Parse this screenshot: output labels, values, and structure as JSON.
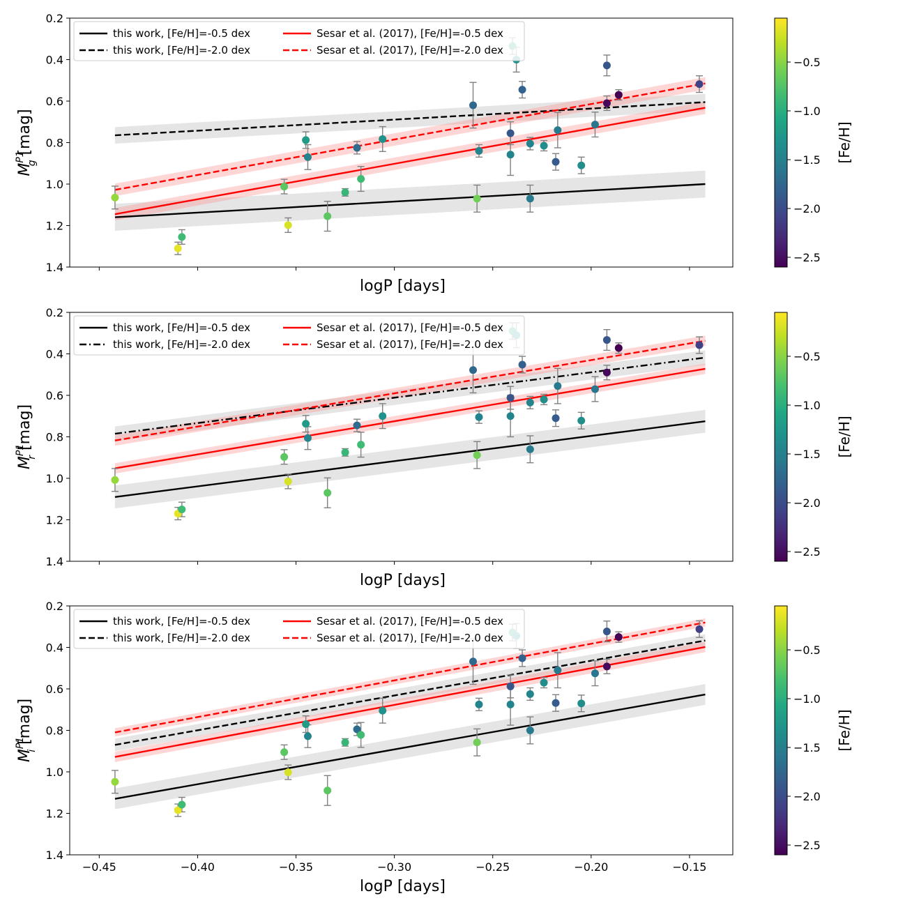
{
  "chart_data": [
    {
      "type": "scatter",
      "band": "g",
      "xlabel": "logP [days]",
      "ylabel_main": "M",
      "ylabel_sup": "P1",
      "ylabel_sub": "g",
      "ylabel_unit": " [mag]",
      "xlim": [
        -0.465,
        -0.128
      ],
      "ylim": [
        1.4,
        0.2
      ],
      "xticks": [
        -0.45,
        -0.4,
        -0.35,
        -0.3,
        -0.25,
        -0.2,
        -0.15
      ],
      "xtick_labels": [
        "−0.45",
        "−0.40",
        "−0.35",
        "−0.30",
        "−0.25",
        "−0.20",
        "−0.15"
      ],
      "show_xtick_labels": false,
      "yticks": [
        0.2,
        0.4,
        0.6,
        0.8,
        1.0,
        1.2,
        1.4
      ],
      "ytick_labels": [
        "0.2",
        "0.4",
        "0.6",
        "0.8",
        "1.0",
        "1.2",
        "1.4"
      ],
      "legend": {
        "location": "upper-left",
        "columns": 2
      },
      "lines": [
        {
          "label": "this work, [Fe/H]=-0.5 dex",
          "color": "#000000",
          "style": "solid",
          "x": [
            -0.442,
            -0.142
          ],
          "y": [
            1.16,
            1.0
          ],
          "band": 0.065
        },
        {
          "label": "this work, [Fe/H]=-2.0 dex",
          "color": "#000000",
          "style": "dashed",
          "x": [
            -0.442,
            -0.142
          ],
          "y": [
            0.765,
            0.605
          ],
          "band": 0.04
        },
        {
          "label": "Sesar et al. (2017), [Fe/H]=-0.5 dex",
          "color": "#ff0000",
          "style": "solid",
          "x": [
            -0.442,
            -0.142
          ],
          "y": [
            1.145,
            0.632
          ],
          "band": 0.03
        },
        {
          "label": "Sesar et al. (2017), [Fe/H]=-2.0 dex",
          "color": "#ff0000",
          "style": "dashed",
          "x": [
            -0.442,
            -0.142
          ],
          "y": [
            1.028,
            0.515
          ],
          "band": 0.03
        }
      ],
      "points": [
        {
          "x": -0.442,
          "y": 1.065,
          "err": 0.055,
          "feh": -0.45
        },
        {
          "x": -0.41,
          "y": 1.31,
          "err": 0.03,
          "feh": -0.15
        },
        {
          "x": -0.408,
          "y": 1.255,
          "err": 0.035,
          "feh": -0.85
        },
        {
          "x": -0.356,
          "y": 1.012,
          "err": 0.035,
          "feh": -0.7
        },
        {
          "x": -0.354,
          "y": 1.198,
          "err": 0.035,
          "feh": -0.2
        },
        {
          "x": -0.345,
          "y": 0.788,
          "err": 0.04,
          "feh": -1.2
        },
        {
          "x": -0.344,
          "y": 0.87,
          "err": 0.06,
          "feh": -1.45
        },
        {
          "x": -0.334,
          "y": 1.155,
          "err": 0.072,
          "feh": -0.7
        },
        {
          "x": -0.325,
          "y": 1.04,
          "err": 0.018,
          "feh": -0.9
        },
        {
          "x": -0.319,
          "y": 0.825,
          "err": 0.03,
          "feh": -1.7
        },
        {
          "x": -0.317,
          "y": 0.975,
          "err": 0.06,
          "feh": -0.85
        },
        {
          "x": -0.306,
          "y": 0.783,
          "err": 0.06,
          "feh": -1.3
        },
        {
          "x": -0.26,
          "y": 0.62,
          "err": 0.11,
          "feh": -1.75
        },
        {
          "x": -0.258,
          "y": 1.07,
          "err": 0.065,
          "feh": -0.6
        },
        {
          "x": -0.257,
          "y": 0.84,
          "err": 0.03,
          "feh": -1.45
        },
        {
          "x": -0.241,
          "y": 0.755,
          "err": 0.055,
          "feh": -1.9
        },
        {
          "x": -0.241,
          "y": 0.858,
          "err": 0.1,
          "feh": -1.45
        },
        {
          "x": -0.24,
          "y": 0.335,
          "err": 0.04,
          "feh": -1.05
        },
        {
          "x": -0.238,
          "y": 0.4,
          "err": 0.06,
          "feh": -1.3
        },
        {
          "x": -0.235,
          "y": 0.545,
          "err": 0.04,
          "feh": -1.8
        },
        {
          "x": -0.231,
          "y": 0.805,
          "err": 0.03,
          "feh": -1.45
        },
        {
          "x": -0.231,
          "y": 1.07,
          "err": 0.065,
          "feh": -1.55
        },
        {
          "x": -0.224,
          "y": 0.815,
          "err": 0.025,
          "feh": -1.35
        },
        {
          "x": -0.218,
          "y": 0.893,
          "err": 0.04,
          "feh": -1.85
        },
        {
          "x": -0.217,
          "y": 0.74,
          "err": 0.085,
          "feh": -1.55
        },
        {
          "x": -0.205,
          "y": 0.91,
          "err": 0.04,
          "feh": -1.35
        },
        {
          "x": -0.198,
          "y": 0.713,
          "err": 0.06,
          "feh": -1.6
        },
        {
          "x": -0.192,
          "y": 0.428,
          "err": 0.05,
          "feh": -1.9
        },
        {
          "x": -0.192,
          "y": 0.61,
          "err": 0.035,
          "feh": -2.55
        },
        {
          "x": -0.186,
          "y": 0.57,
          "err": 0.025,
          "feh": -2.65
        },
        {
          "x": -0.145,
          "y": 0.518,
          "err": 0.04,
          "feh": -2.1
        }
      ]
    },
    {
      "type": "scatter",
      "band": "r",
      "xlabel": "logP [days]",
      "ylabel_main": "M",
      "ylabel_sup": "P1",
      "ylabel_sub": "r",
      "ylabel_unit": " [mag]",
      "xlim": [
        -0.465,
        -0.128
      ],
      "ylim": [
        1.4,
        0.2
      ],
      "xticks": [
        -0.45,
        -0.4,
        -0.35,
        -0.3,
        -0.25,
        -0.2,
        -0.15
      ],
      "xtick_labels": [
        "−0.45",
        "−0.40",
        "−0.35",
        "−0.30",
        "−0.25",
        "−0.20",
        "−0.15"
      ],
      "show_xtick_labels": false,
      "yticks": [
        0.2,
        0.4,
        0.6,
        0.8,
        1.0,
        1.2,
        1.4
      ],
      "ytick_labels": [
        "0.2",
        "0.4",
        "0.6",
        "0.8",
        "1.0",
        "1.2",
        "1.4"
      ],
      "legend": {
        "location": "upper-left",
        "columns": 2
      },
      "lines": [
        {
          "label": "this work, [Fe/H]=-0.5 dex",
          "color": "#000000",
          "style": "solid",
          "x": [
            -0.442,
            -0.142
          ],
          "y": [
            1.09,
            0.725
          ],
          "band": 0.055
        },
        {
          "label": "this work, [Fe/H]=-2.0 dex",
          "color": "#000000",
          "style": "dashdot",
          "x": [
            -0.442,
            -0.142
          ],
          "y": [
            0.785,
            0.418
          ],
          "band": 0.035
        },
        {
          "label": "Sesar et al. (2017), [Fe/H]=-0.5 dex",
          "color": "#ff0000",
          "style": "solid",
          "x": [
            -0.442,
            -0.142
          ],
          "y": [
            0.952,
            0.472
          ],
          "band": 0.025
        },
        {
          "label": "Sesar et al. (2017), [Fe/H]=-2.0 dex",
          "color": "#ff0000",
          "style": "dashed",
          "x": [
            -0.442,
            -0.142
          ],
          "y": [
            0.818,
            0.337
          ],
          "band": 0.025
        }
      ],
      "points": [
        {
          "x": -0.442,
          "y": 1.008,
          "err": 0.055,
          "feh": -0.45
        },
        {
          "x": -0.41,
          "y": 1.17,
          "err": 0.03,
          "feh": -0.15
        },
        {
          "x": -0.408,
          "y": 1.15,
          "err": 0.035,
          "feh": -0.85
        },
        {
          "x": -0.356,
          "y": 0.897,
          "err": 0.035,
          "feh": -0.7
        },
        {
          "x": -0.354,
          "y": 1.015,
          "err": 0.035,
          "feh": -0.2
        },
        {
          "x": -0.345,
          "y": 0.737,
          "err": 0.04,
          "feh": -1.2
        },
        {
          "x": -0.344,
          "y": 0.806,
          "err": 0.055,
          "feh": -1.45
        },
        {
          "x": -0.334,
          "y": 1.07,
          "err": 0.072,
          "feh": -0.7
        },
        {
          "x": -0.325,
          "y": 0.875,
          "err": 0.018,
          "feh": -0.9
        },
        {
          "x": -0.319,
          "y": 0.745,
          "err": 0.03,
          "feh": -1.7
        },
        {
          "x": -0.317,
          "y": 0.838,
          "err": 0.06,
          "feh": -0.85
        },
        {
          "x": -0.306,
          "y": 0.7,
          "err": 0.06,
          "feh": -1.3
        },
        {
          "x": -0.26,
          "y": 0.478,
          "err": 0.11,
          "feh": -1.75
        },
        {
          "x": -0.258,
          "y": 0.888,
          "err": 0.065,
          "feh": -0.6
        },
        {
          "x": -0.257,
          "y": 0.705,
          "err": 0.03,
          "feh": -1.45
        },
        {
          "x": -0.241,
          "y": 0.612,
          "err": 0.055,
          "feh": -1.9
        },
        {
          "x": -0.241,
          "y": 0.7,
          "err": 0.1,
          "feh": -1.45
        },
        {
          "x": -0.24,
          "y": 0.29,
          "err": 0.04,
          "feh": -1.05
        },
        {
          "x": -0.238,
          "y": 0.31,
          "err": 0.06,
          "feh": -1.3
        },
        {
          "x": -0.235,
          "y": 0.452,
          "err": 0.04,
          "feh": -1.8
        },
        {
          "x": -0.231,
          "y": 0.635,
          "err": 0.03,
          "feh": -1.45
        },
        {
          "x": -0.231,
          "y": 0.86,
          "err": 0.065,
          "feh": -1.55
        },
        {
          "x": -0.224,
          "y": 0.62,
          "err": 0.025,
          "feh": -1.35
        },
        {
          "x": -0.218,
          "y": 0.71,
          "err": 0.04,
          "feh": -1.85
        },
        {
          "x": -0.217,
          "y": 0.555,
          "err": 0.085,
          "feh": -1.55
        },
        {
          "x": -0.205,
          "y": 0.722,
          "err": 0.04,
          "feh": -1.35
        },
        {
          "x": -0.198,
          "y": 0.57,
          "err": 0.06,
          "feh": -1.6
        },
        {
          "x": -0.192,
          "y": 0.333,
          "err": 0.05,
          "feh": -1.9
        },
        {
          "x": -0.192,
          "y": 0.49,
          "err": 0.035,
          "feh": -2.55
        },
        {
          "x": -0.186,
          "y": 0.372,
          "err": 0.025,
          "feh": -2.65
        },
        {
          "x": -0.145,
          "y": 0.358,
          "err": 0.04,
          "feh": -2.1
        }
      ]
    },
    {
      "type": "scatter",
      "band": "i",
      "xlabel": "logP [days]",
      "ylabel_main": "M",
      "ylabel_sup": "P1",
      "ylabel_sub": "i",
      "ylabel_unit": " [mag]",
      "xlim": [
        -0.465,
        -0.128
      ],
      "ylim": [
        1.4,
        0.2
      ],
      "xticks": [
        -0.45,
        -0.4,
        -0.35,
        -0.3,
        -0.25,
        -0.2,
        -0.15
      ],
      "xtick_labels": [
        "−0.45",
        "−0.40",
        "−0.35",
        "−0.30",
        "−0.25",
        "−0.20",
        "−0.15"
      ],
      "show_xtick_labels": true,
      "yticks": [
        0.2,
        0.4,
        0.6,
        0.8,
        1.0,
        1.2,
        1.4
      ],
      "ytick_labels": [
        "0.2",
        "0.4",
        "0.6",
        "0.8",
        "1.0",
        "1.2",
        "1.4"
      ],
      "legend": {
        "location": "upper-left",
        "columns": 2
      },
      "lines": [
        {
          "label": "this work, [Fe/H]=-0.5 dex",
          "color": "#000000",
          "style": "solid",
          "x": [
            -0.442,
            -0.142
          ],
          "y": [
            1.13,
            0.627
          ],
          "band": 0.05
        },
        {
          "label": "this work, [Fe/H]=-2.0 dex",
          "color": "#000000",
          "style": "dashed",
          "x": [
            -0.442,
            -0.142
          ],
          "y": [
            0.87,
            0.367
          ],
          "band": 0.03
        },
        {
          "label": "Sesar et al. (2017), [Fe/H]=-0.5 dex",
          "color": "#ff0000",
          "style": "solid",
          "x": [
            -0.442,
            -0.142
          ],
          "y": [
            0.928,
            0.398
          ],
          "band": 0.025
        },
        {
          "label": "Sesar et al. (2017), [Fe/H]=-2.0 dex",
          "color": "#ff0000",
          "style": "dashed",
          "x": [
            -0.442,
            -0.142
          ],
          "y": [
            0.81,
            0.28
          ],
          "band": 0.02
        }
      ],
      "points": [
        {
          "x": -0.442,
          "y": 1.048,
          "err": 0.055,
          "feh": -0.45
        },
        {
          "x": -0.41,
          "y": 1.185,
          "err": 0.03,
          "feh": -0.15
        },
        {
          "x": -0.408,
          "y": 1.158,
          "err": 0.035,
          "feh": -0.85
        },
        {
          "x": -0.356,
          "y": 0.905,
          "err": 0.035,
          "feh": -0.7
        },
        {
          "x": -0.354,
          "y": 1.002,
          "err": 0.035,
          "feh": -0.2
        },
        {
          "x": -0.345,
          "y": 0.77,
          "err": 0.04,
          "feh": -1.2
        },
        {
          "x": -0.344,
          "y": 0.828,
          "err": 0.055,
          "feh": -1.45
        },
        {
          "x": -0.334,
          "y": 1.09,
          "err": 0.072,
          "feh": -0.7
        },
        {
          "x": -0.325,
          "y": 0.858,
          "err": 0.018,
          "feh": -0.9
        },
        {
          "x": -0.319,
          "y": 0.795,
          "err": 0.03,
          "feh": -1.7
        },
        {
          "x": -0.317,
          "y": 0.822,
          "err": 0.06,
          "feh": -0.85
        },
        {
          "x": -0.306,
          "y": 0.705,
          "err": 0.06,
          "feh": -1.3
        },
        {
          "x": -0.26,
          "y": 0.468,
          "err": 0.11,
          "feh": -1.75
        },
        {
          "x": -0.258,
          "y": 0.858,
          "err": 0.065,
          "feh": -0.6
        },
        {
          "x": -0.257,
          "y": 0.675,
          "err": 0.03,
          "feh": -1.45
        },
        {
          "x": -0.241,
          "y": 0.588,
          "err": 0.055,
          "feh": -1.9
        },
        {
          "x": -0.241,
          "y": 0.675,
          "err": 0.1,
          "feh": -1.45
        },
        {
          "x": -0.24,
          "y": 0.328,
          "err": 0.04,
          "feh": -1.05
        },
        {
          "x": -0.238,
          "y": 0.345,
          "err": 0.06,
          "feh": -1.3
        },
        {
          "x": -0.235,
          "y": 0.452,
          "err": 0.04,
          "feh": -1.8
        },
        {
          "x": -0.231,
          "y": 0.625,
          "err": 0.03,
          "feh": -1.45
        },
        {
          "x": -0.231,
          "y": 0.8,
          "err": 0.065,
          "feh": -1.55
        },
        {
          "x": -0.224,
          "y": 0.57,
          "err": 0.025,
          "feh": -1.35
        },
        {
          "x": -0.218,
          "y": 0.668,
          "err": 0.04,
          "feh": -1.85
        },
        {
          "x": -0.217,
          "y": 0.51,
          "err": 0.085,
          "feh": -1.55
        },
        {
          "x": -0.205,
          "y": 0.67,
          "err": 0.04,
          "feh": -1.35
        },
        {
          "x": -0.198,
          "y": 0.525,
          "err": 0.06,
          "feh": -1.6
        },
        {
          "x": -0.192,
          "y": 0.323,
          "err": 0.05,
          "feh": -1.9
        },
        {
          "x": -0.192,
          "y": 0.492,
          "err": 0.035,
          "feh": -2.55
        },
        {
          "x": -0.186,
          "y": 0.35,
          "err": 0.025,
          "feh": -2.65
        },
        {
          "x": -0.145,
          "y": 0.312,
          "err": 0.04,
          "feh": -2.1
        }
      ]
    }
  ],
  "colorbar": {
    "label": "[Fe/H]",
    "colormap": "viridis",
    "vmin": -2.6,
    "vmax": -0.05,
    "ticks": [
      -0.5,
      -1.0,
      -1.5,
      -2.0,
      -2.5
    ],
    "tick_labels": [
      "−0.5",
      "−1.0",
      "−1.5",
      "−2.0",
      "−2.5"
    ]
  },
  "colors": {
    "errorbar": "#808080",
    "band_black": "#bfbfbf",
    "band_red": "#ff9999"
  }
}
